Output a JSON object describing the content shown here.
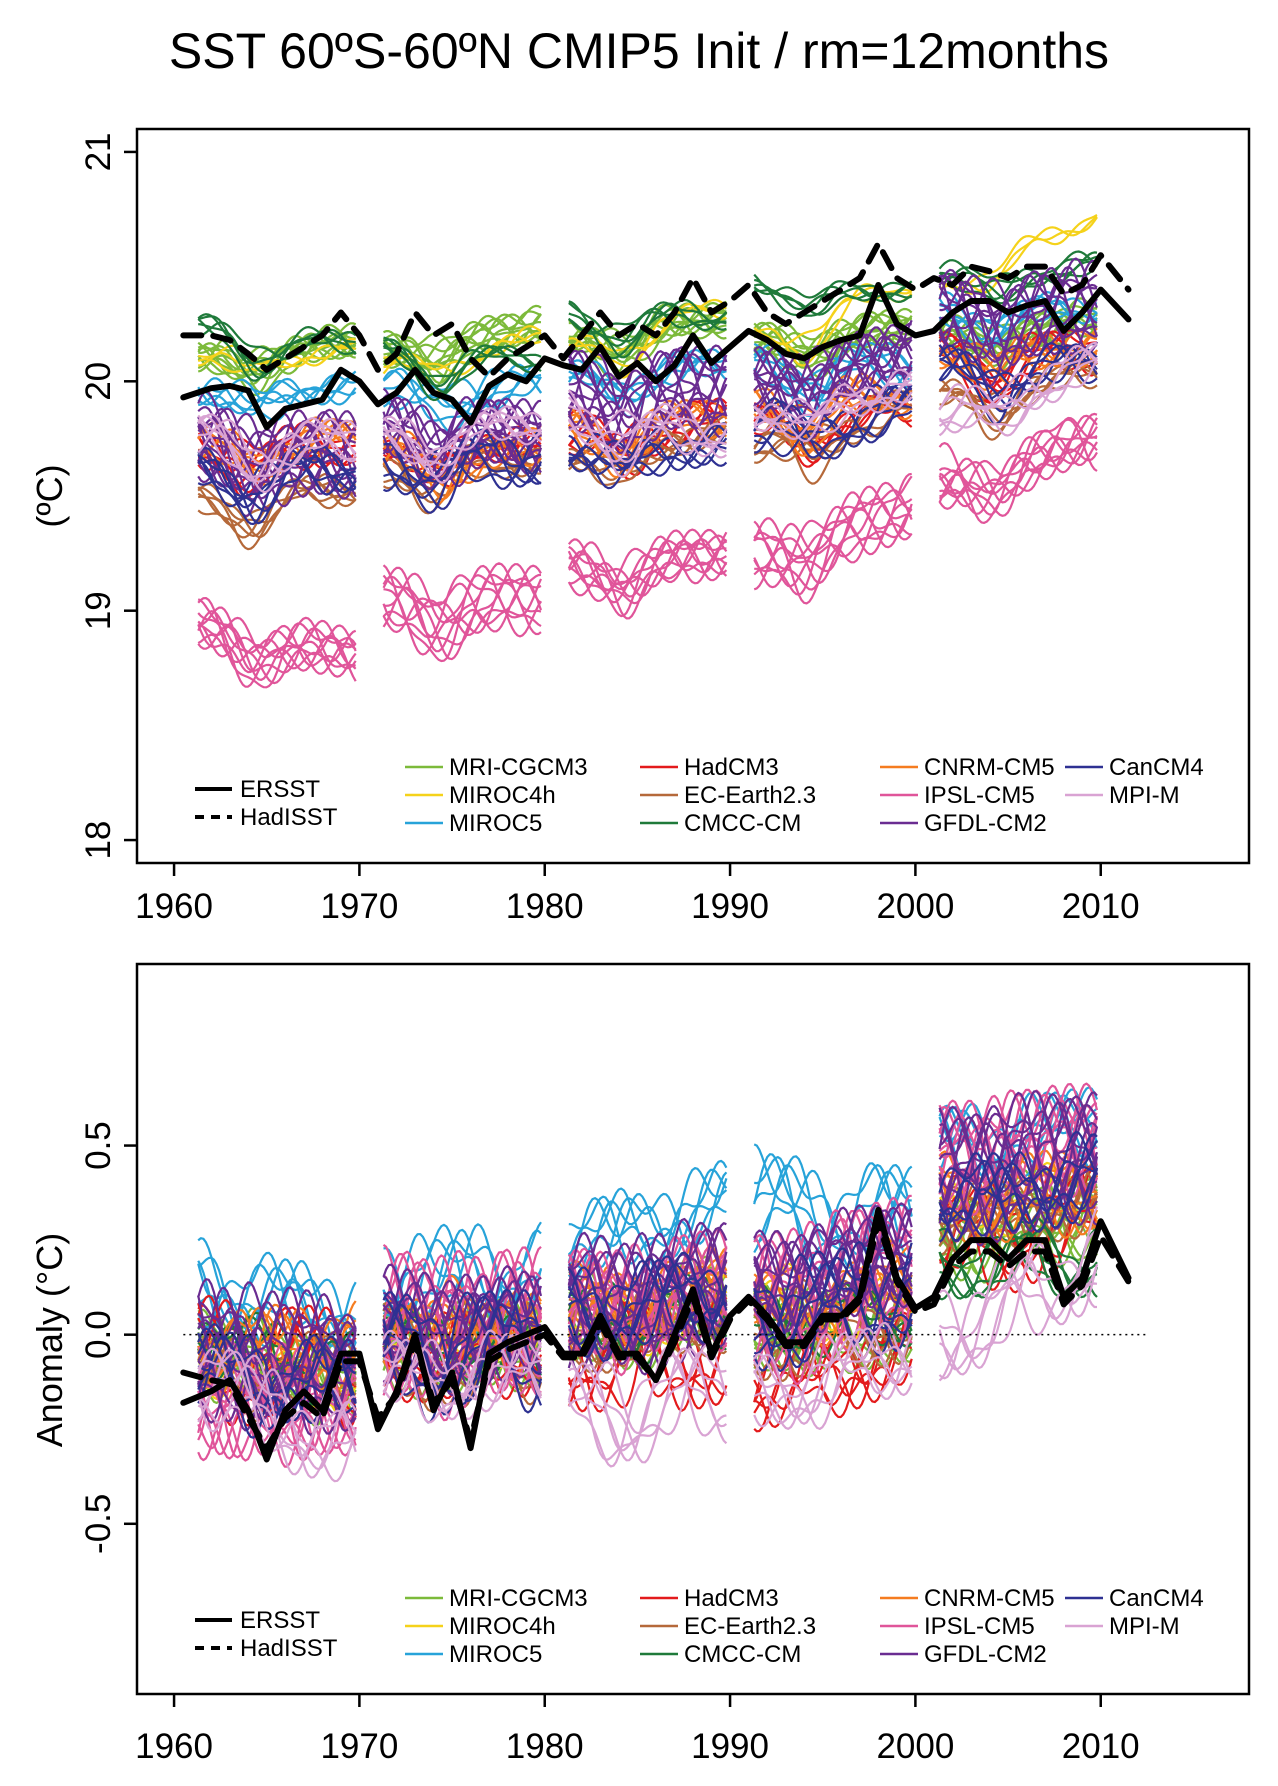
{
  "figure": {
    "title": "SST 60ºS-60ºN  CMIP5 Init  / rm=12months"
  },
  "colors": {
    "MRI-CGCM3": "#7cba3a",
    "MIROC4h": "#f5d21a",
    "MIROC5": "#27a3d9",
    "HadCM3": "#e31a1c",
    "EC-Earth2.3": "#b5693a",
    "CMCC-CM": "#1f7a3a",
    "CNRM-CM5": "#f57c20",
    "IPSL-CM5": "#e0559a",
    "GFDL-CM2": "#6a2c91",
    "CanCM4": "#2e3192",
    "MPI-M": "#d9a3d3",
    "obs": "#000000"
  },
  "legend": {
    "observations": [
      {
        "name": "ERSST",
        "style": "solid"
      },
      {
        "name": "HadISST",
        "style": "dashed"
      }
    ],
    "models": [
      "MRI-CGCM3",
      "MIROC4h",
      "MIROC5",
      "HadCM3",
      "EC-Earth2.3",
      "CMCC-CM",
      "CNRM-CM5",
      "IPSL-CM5",
      "GFDL-CM2",
      "CanCM4",
      "MPI-M"
    ]
  },
  "chart_data": [
    {
      "type": "line",
      "panel": "absolute",
      "ylabel": "(ºC)",
      "xlim": [
        1958,
        2018
      ],
      "ylim": [
        17.9,
        21.1
      ],
      "xticks": [
        1960,
        1970,
        1980,
        1990,
        2000,
        2010
      ],
      "yticks": [
        18,
        19,
        20,
        21
      ],
      "grid": false,
      "legend_position": "bottom",
      "init_start_years": [
        1961,
        1971,
        1981,
        1991,
        2001
      ],
      "forecast_length_years": 8.5,
      "observations": {
        "x": [
          1960.5,
          1962,
          1963,
          1964,
          1965,
          1966,
          1967,
          1968,
          1969,
          1970,
          1971,
          1972,
          1973,
          1974,
          1975,
          1976,
          1977,
          1978,
          1979,
          1980,
          1981,
          1982,
          1983,
          1984,
          1985,
          1986,
          1987,
          1988,
          1989,
          1990,
          1991,
          1992,
          1993,
          1994,
          1995,
          1996,
          1997,
          1998,
          1999,
          2000,
          2001,
          2002,
          2003,
          2004,
          2005,
          2006,
          2007,
          2008,
          2009,
          2010,
          2011.5
        ],
        "series": [
          {
            "name": "ERSST",
            "style": "solid",
            "y": [
              19.93,
              19.97,
              19.98,
              19.96,
              19.8,
              19.88,
              19.9,
              19.92,
              20.05,
              20.0,
              19.9,
              19.95,
              20.05,
              19.95,
              19.92,
              19.82,
              19.98,
              20.03,
              20.0,
              20.1,
              20.07,
              20.05,
              20.15,
              20.02,
              20.08,
              20.0,
              20.07,
              20.2,
              20.08,
              20.15,
              20.22,
              20.18,
              20.12,
              20.1,
              20.15,
              20.18,
              20.2,
              20.42,
              20.25,
              20.2,
              20.22,
              20.3,
              20.35,
              20.35,
              20.3,
              20.33,
              20.35,
              20.22,
              20.3,
              20.4,
              20.27
            ]
          },
          {
            "name": "HadISST",
            "style": "dashed",
            "y": [
              20.2,
              20.2,
              20.18,
              20.12,
              20.05,
              20.1,
              20.15,
              20.2,
              20.3,
              20.2,
              20.05,
              20.12,
              20.3,
              20.2,
              20.25,
              20.1,
              20.02,
              20.1,
              20.15,
              20.2,
              20.1,
              20.2,
              20.3,
              20.2,
              20.25,
              20.2,
              20.3,
              20.45,
              20.3,
              20.35,
              20.42,
              20.3,
              20.25,
              20.3,
              20.35,
              20.4,
              20.45,
              20.6,
              20.45,
              20.4,
              20.45,
              20.42,
              20.5,
              20.48,
              20.45,
              20.5,
              20.5,
              20.38,
              20.42,
              20.55,
              20.4
            ]
          }
        ]
      },
      "model_bands": [
        {
          "model": "MRI-CGCM3",
          "members": 10,
          "start": [
            20.15,
            20.18,
            20.22,
            20.22,
            20.25
          ],
          "trend": [
            0.05,
            0.1,
            0.1,
            0.05,
            0.05
          ],
          "spread": 0.07
        },
        {
          "model": "MIROC4h",
          "members": 3,
          "start": [
            20.15,
            20.1,
            20.15,
            20.2,
            20.45
          ],
          "trend": [
            0.0,
            0.1,
            0.2,
            0.25,
            0.3
          ],
          "spread": 0.05
        },
        {
          "model": "MIROC5",
          "members": 6,
          "start": [
            20.0,
            20.0,
            20.05,
            20.1,
            20.35
          ],
          "trend": [
            0.0,
            0.0,
            0.05,
            0.0,
            0.0
          ],
          "spread": 0.08
        },
        {
          "model": "HadCM3",
          "members": 6,
          "start": [
            19.75,
            19.75,
            19.8,
            19.85,
            20.15
          ],
          "trend": [
            0.0,
            0.0,
            0.05,
            0.05,
            0.0
          ],
          "spread": 0.08
        },
        {
          "model": "EC-Earth2.3",
          "members": 6,
          "start": [
            19.5,
            19.65,
            19.7,
            19.75,
            19.95
          ],
          "trend": [
            0.05,
            0.05,
            0.1,
            0.15,
            0.1
          ],
          "spread": 0.07
        },
        {
          "model": "CMCC-CM",
          "members": 5,
          "start": [
            20.25,
            20.15,
            20.3,
            20.45,
            20.5
          ],
          "trend": [
            -0.1,
            -0.05,
            0.0,
            -0.05,
            0.0
          ],
          "spread": 0.05
        },
        {
          "model": "CNRM-CM5",
          "members": 6,
          "start": [
            19.75,
            19.7,
            19.8,
            19.9,
            20.15
          ],
          "trend": [
            0.0,
            0.0,
            0.05,
            0.05,
            0.0
          ],
          "spread": 0.08
        },
        {
          "model": "IPSL-CM5",
          "members": 10,
          "start": [
            18.95,
            19.05,
            19.2,
            19.25,
            19.55
          ],
          "trend": [
            -0.15,
            0.0,
            0.05,
            0.2,
            0.2
          ],
          "spread": 0.12
        },
        {
          "model": "GFDL-CM2",
          "members": 12,
          "start": [
            19.75,
            19.8,
            19.95,
            20.0,
            20.3
          ],
          "trend": [
            -0.1,
            -0.05,
            0.0,
            0.1,
            0.0
          ],
          "spread": 0.15
        },
        {
          "model": "CanCM4",
          "members": 6,
          "start": [
            19.6,
            19.65,
            19.7,
            19.8,
            20.05
          ],
          "trend": [
            0.0,
            0.0,
            0.0,
            0.05,
            0.0
          ],
          "spread": 0.1
        },
        {
          "model": "MPI-M",
          "members": 6,
          "start": [
            19.75,
            19.75,
            19.85,
            19.85,
            19.85
          ],
          "trend": [
            -0.05,
            0.05,
            -0.1,
            0.1,
            0.2
          ],
          "spread": 0.08
        }
      ]
    },
    {
      "type": "line",
      "panel": "anomaly",
      "ylabel": "Anomaly (°C)",
      "xlim": [
        1958,
        2018
      ],
      "ylim": [
        -0.95,
        0.98
      ],
      "xticks": [
        1960,
        1970,
        1980,
        1990,
        2000,
        2010
      ],
      "yticks": [
        -0.5,
        0.0,
        0.5
      ],
      "ytick_labels": [
        "-0.5",
        "0.0",
        "0.5"
      ],
      "zero_line": true,
      "grid": false,
      "legend_position": "bottom",
      "init_start_years": [
        1961,
        1971,
        1981,
        1991,
        2001
      ],
      "forecast_length_years": 8.5,
      "observations": {
        "x": [
          1960.5,
          1962,
          1963,
          1964,
          1965,
          1966,
          1967,
          1968,
          1969,
          1970,
          1971,
          1972,
          1973,
          1974,
          1975,
          1976,
          1977,
          1978,
          1979,
          1980,
          1981,
          1982,
          1983,
          1984,
          1985,
          1986,
          1987,
          1988,
          1989,
          1990,
          1991,
          1992,
          1993,
          1994,
          1995,
          1996,
          1997,
          1998,
          1999,
          2000,
          2001,
          2002,
          2003,
          2004,
          2005,
          2006,
          2007,
          2008,
          2009,
          2010,
          2011.5
        ],
        "series": [
          {
            "name": "ERSST",
            "style": "solid",
            "y": [
              -0.18,
              -0.15,
              -0.12,
              -0.2,
              -0.33,
              -0.2,
              -0.15,
              -0.2,
              -0.05,
              -0.05,
              -0.25,
              -0.15,
              0.0,
              -0.2,
              -0.1,
              -0.3,
              -0.05,
              -0.02,
              0.0,
              0.02,
              -0.05,
              -0.05,
              0.05,
              -0.05,
              -0.05,
              -0.12,
              0.0,
              0.12,
              -0.05,
              0.05,
              0.1,
              0.05,
              -0.02,
              -0.02,
              0.05,
              0.05,
              0.1,
              0.33,
              0.15,
              0.07,
              0.1,
              0.2,
              0.25,
              0.25,
              0.2,
              0.25,
              0.25,
              0.1,
              0.15,
              0.3,
              0.15
            ]
          },
          {
            "name": "HadISST",
            "style": "dashed",
            "y": [
              -0.1,
              -0.12,
              -0.13,
              -0.22,
              -0.3,
              -0.22,
              -0.18,
              -0.22,
              -0.07,
              -0.07,
              -0.22,
              -0.16,
              -0.02,
              -0.18,
              -0.12,
              -0.28,
              -0.07,
              -0.04,
              -0.02,
              0.0,
              -0.06,
              -0.06,
              0.03,
              -0.06,
              -0.06,
              -0.12,
              -0.02,
              0.1,
              -0.06,
              0.04,
              0.09,
              0.04,
              -0.03,
              -0.03,
              0.04,
              0.04,
              0.09,
              0.3,
              0.14,
              0.06,
              0.08,
              0.18,
              0.22,
              0.22,
              0.18,
              0.22,
              0.22,
              0.08,
              0.13,
              0.26,
              0.14
            ]
          }
        ]
      },
      "model_bands": [
        {
          "model": "MRI-CGCM3",
          "members": 10,
          "start": [
            -0.05,
            -0.05,
            0.0,
            0.0,
            0.25
          ],
          "trend": [
            -0.1,
            0.0,
            0.05,
            0.0,
            0.05
          ],
          "spread": 0.1
        },
        {
          "model": "MIROC4h",
          "members": 3,
          "start": [
            -0.1,
            -0.05,
            0.0,
            0.05,
            0.3
          ],
          "trend": [
            -0.05,
            0.0,
            0.05,
            0.0,
            0.05
          ],
          "spread": 0.08
        },
        {
          "model": "MIROC5",
          "members": 6,
          "start": [
            0.1,
            0.1,
            0.2,
            0.3,
            0.45
          ],
          "trend": [
            -0.1,
            0.0,
            0.1,
            -0.05,
            0.05
          ],
          "spread": 0.12
        },
        {
          "model": "HadCM3",
          "members": 6,
          "start": [
            -0.1,
            -0.1,
            -0.1,
            -0.2,
            0.2
          ],
          "trend": [
            -0.05,
            0.0,
            0.0,
            0.1,
            0.05
          ],
          "spread": 0.12
        },
        {
          "model": "EC-Earth2.3",
          "members": 6,
          "start": [
            -0.15,
            -0.1,
            -0.05,
            -0.05,
            0.25
          ],
          "trend": [
            0.0,
            0.0,
            0.05,
            0.05,
            0.05
          ],
          "spread": 0.1
        },
        {
          "model": "CMCC-CM",
          "members": 5,
          "start": [
            -0.05,
            -0.05,
            0.0,
            0.0,
            0.15
          ],
          "trend": [
            -0.1,
            -0.05,
            0.0,
            0.0,
            0.0
          ],
          "spread": 0.08
        },
        {
          "model": "CNRM-CM5",
          "members": 6,
          "start": [
            -0.1,
            -0.05,
            0.0,
            0.0,
            0.3
          ],
          "trend": [
            0.0,
            0.0,
            0.05,
            0.05,
            0.0
          ],
          "spread": 0.1
        },
        {
          "model": "IPSL-CM5",
          "members": 10,
          "start": [
            -0.3,
            -0.1,
            -0.05,
            -0.05,
            0.35
          ],
          "trend": [
            0.0,
            0.0,
            0.05,
            0.1,
            0.05
          ],
          "spread": 0.16
        },
        {
          "model": "GFDL-CM2",
          "members": 12,
          "start": [
            -0.15,
            -0.1,
            -0.05,
            0.0,
            0.3
          ],
          "trend": [
            -0.05,
            0.0,
            0.05,
            0.1,
            0.05
          ],
          "spread": 0.14
        },
        {
          "model": "CanCM4",
          "members": 6,
          "start": [
            -0.2,
            -0.15,
            -0.05,
            -0.05,
            0.25
          ],
          "trend": [
            -0.05,
            0.0,
            0.05,
            0.05,
            0.05
          ],
          "spread": 0.12
        },
        {
          "model": "MPI-M",
          "members": 6,
          "start": [
            0.0,
            0.0,
            -0.1,
            -0.05,
            0.1
          ],
          "trend": [
            -0.2,
            0.0,
            0.05,
            0.1,
            0.2
          ],
          "spread": 0.1
        }
      ]
    }
  ]
}
